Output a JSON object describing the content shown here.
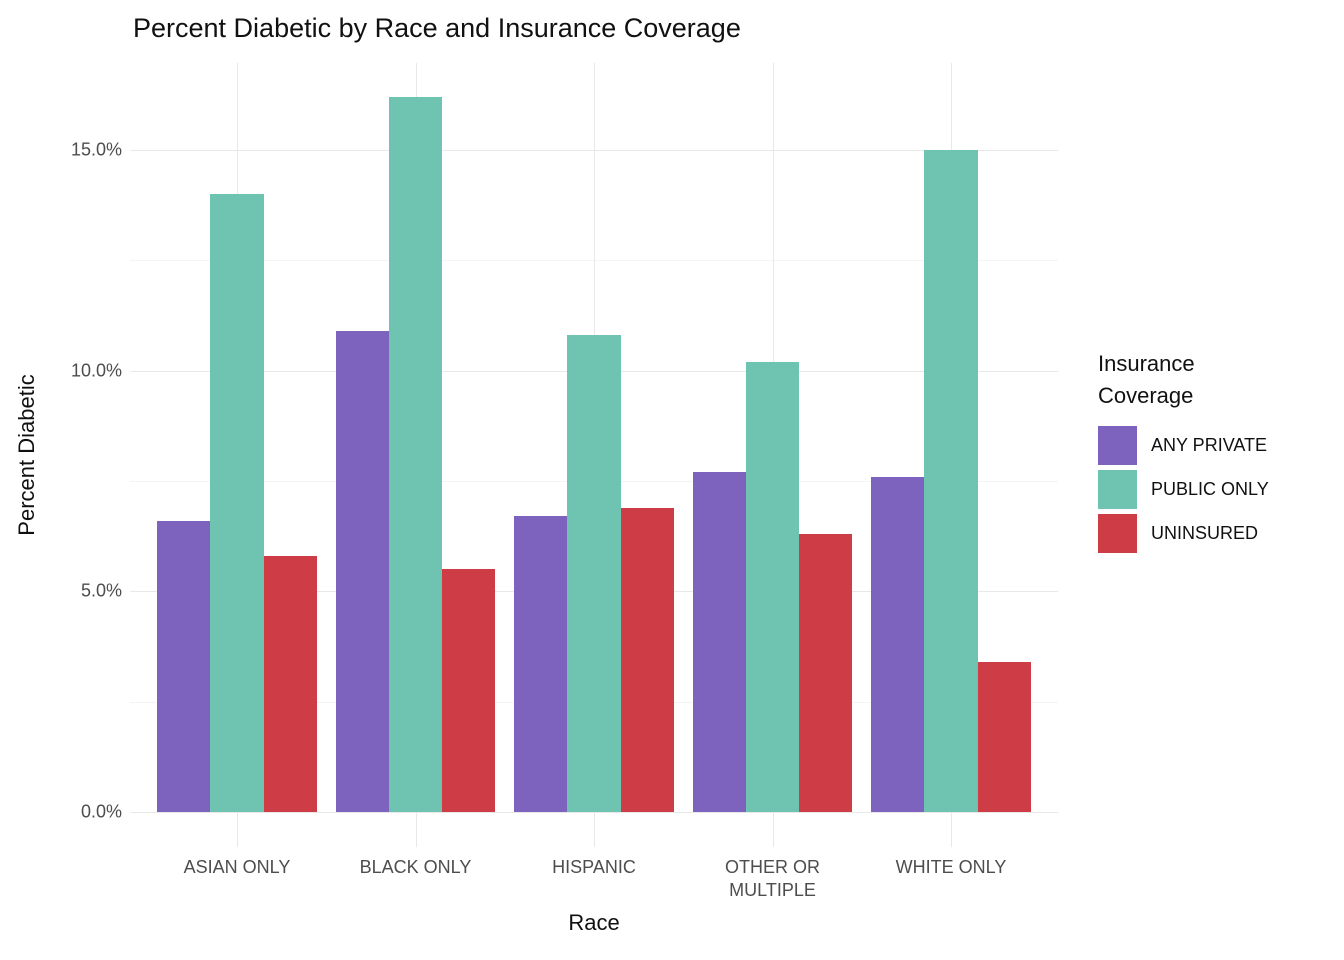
{
  "chart_data": {
    "type": "bar",
    "title": "Percent Diabetic by Race and Insurance Coverage",
    "xlabel": "Race",
    "ylabel": "Percent Diabetic",
    "categories": [
      "ASIAN ONLY",
      "BLACK ONLY",
      "HISPANIC",
      "OTHER OR MULTIPLE",
      "WHITE ONLY"
    ],
    "series": [
      {
        "name": "ANY PRIVATE",
        "color": "#7D62BE",
        "values": [
          6.6,
          10.9,
          6.7,
          7.7,
          7.6
        ]
      },
      {
        "name": "PUBLIC ONLY",
        "color": "#6EC4B1",
        "values": [
          14.0,
          16.2,
          10.8,
          10.2,
          15.0
        ]
      },
      {
        "name": "UNINSURED",
        "color": "#CE3D46",
        "values": [
          5.8,
          5.5,
          6.9,
          6.3,
          3.4
        ]
      }
    ],
    "y_ticks": [
      {
        "label": "0.0%",
        "value": 0
      },
      {
        "label": "5.0%",
        "value": 5
      },
      {
        "label": "10.0%",
        "value": 10
      },
      {
        "label": "15.0%",
        "value": 15
      }
    ],
    "y_minor_gridlines": [
      2.5,
      7.5,
      12.5
    ],
    "ylim": [
      0,
      17.0
    ],
    "legend_title": "Insurance Coverage",
    "legend_position": "right",
    "grid": true,
    "colors": {
      "background": "#ffffff",
      "grid_major": "#e8e8e8",
      "grid_minor": "#f4f4f4",
      "axis_text": "#4d4d4d",
      "title_text": "#111111"
    }
  }
}
